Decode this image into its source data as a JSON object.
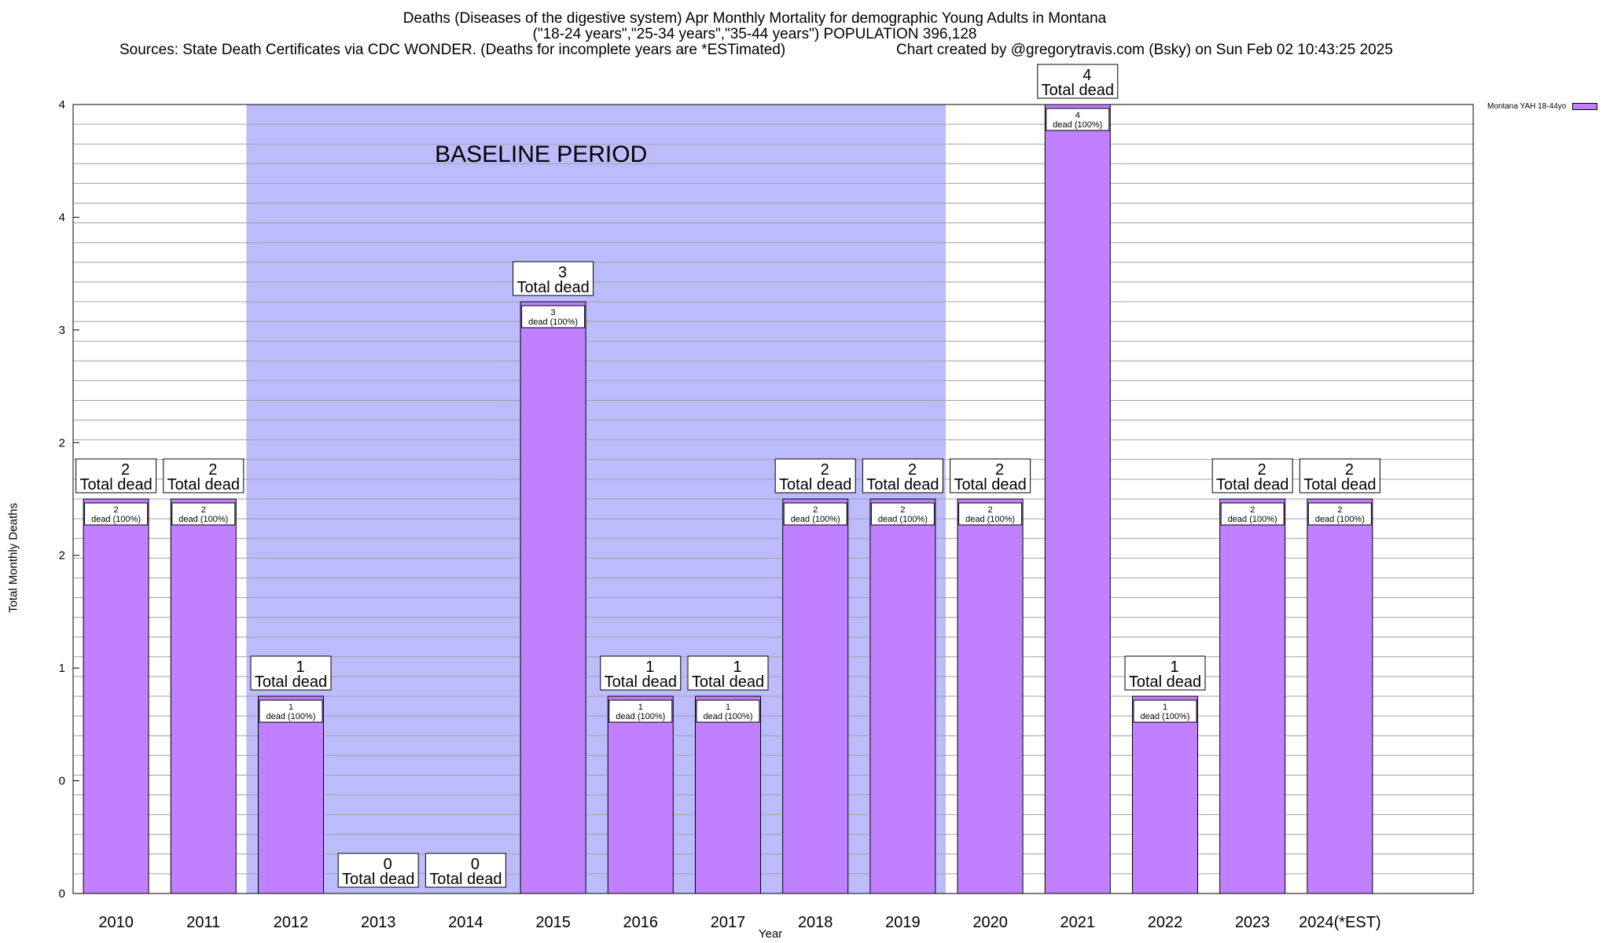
{
  "header": {
    "title_line1": "Deaths (Diseases of the digestive system) Apr Monthly Mortality for demographic Young Adults in Montana",
    "title_line2": "(\"18-24 years\",\"25-34 years\",\"35-44 years\") POPULATION 396,128",
    "sources": "Sources: State Death Certificates via CDC WONDER. (Deaths for incomplete years are *ESTimated)",
    "credit": "Chart created by @gregorytravis.com (Bsky) on Sun Feb 02 10:43:25 2025"
  },
  "legend": {
    "label": "Montana YAH 18-44yo"
  },
  "colors": {
    "bar": "#c080ff",
    "baseline": "#bcbcfc",
    "grid": "#a0a0a0"
  },
  "chart_data": {
    "type": "bar",
    "title": "Deaths (Diseases of the digestive system) Apr Monthly Mortality for demographic Young Adults in Montana",
    "xlabel": "Year",
    "ylabel": "Total Monthly Deaths",
    "ylim": [
      0,
      4
    ],
    "categories": [
      "2010",
      "2011",
      "2012",
      "2013",
      "2014",
      "2015",
      "2016",
      "2017",
      "2018",
      "2019",
      "2020",
      "2021",
      "2022",
      "2023",
      "2024(*EST)"
    ],
    "series": [
      {
        "name": "Montana YAH 18-44yo",
        "values": [
          2,
          2,
          1,
          0,
          0,
          3,
          1,
          1,
          2,
          2,
          2,
          4,
          1,
          2,
          2
        ]
      }
    ],
    "ytick_labels": [
      "0",
      "0",
      "1",
      "2",
      "2",
      "3",
      "4",
      "4"
    ],
    "baseline_period": {
      "label": "BASELINE PERIOD",
      "start": "2012",
      "end": "2019"
    },
    "total_label_suffix": "Total dead",
    "inner_label_suffix": "dead (100%)",
    "legend_position": "top-right",
    "grid": true
  }
}
